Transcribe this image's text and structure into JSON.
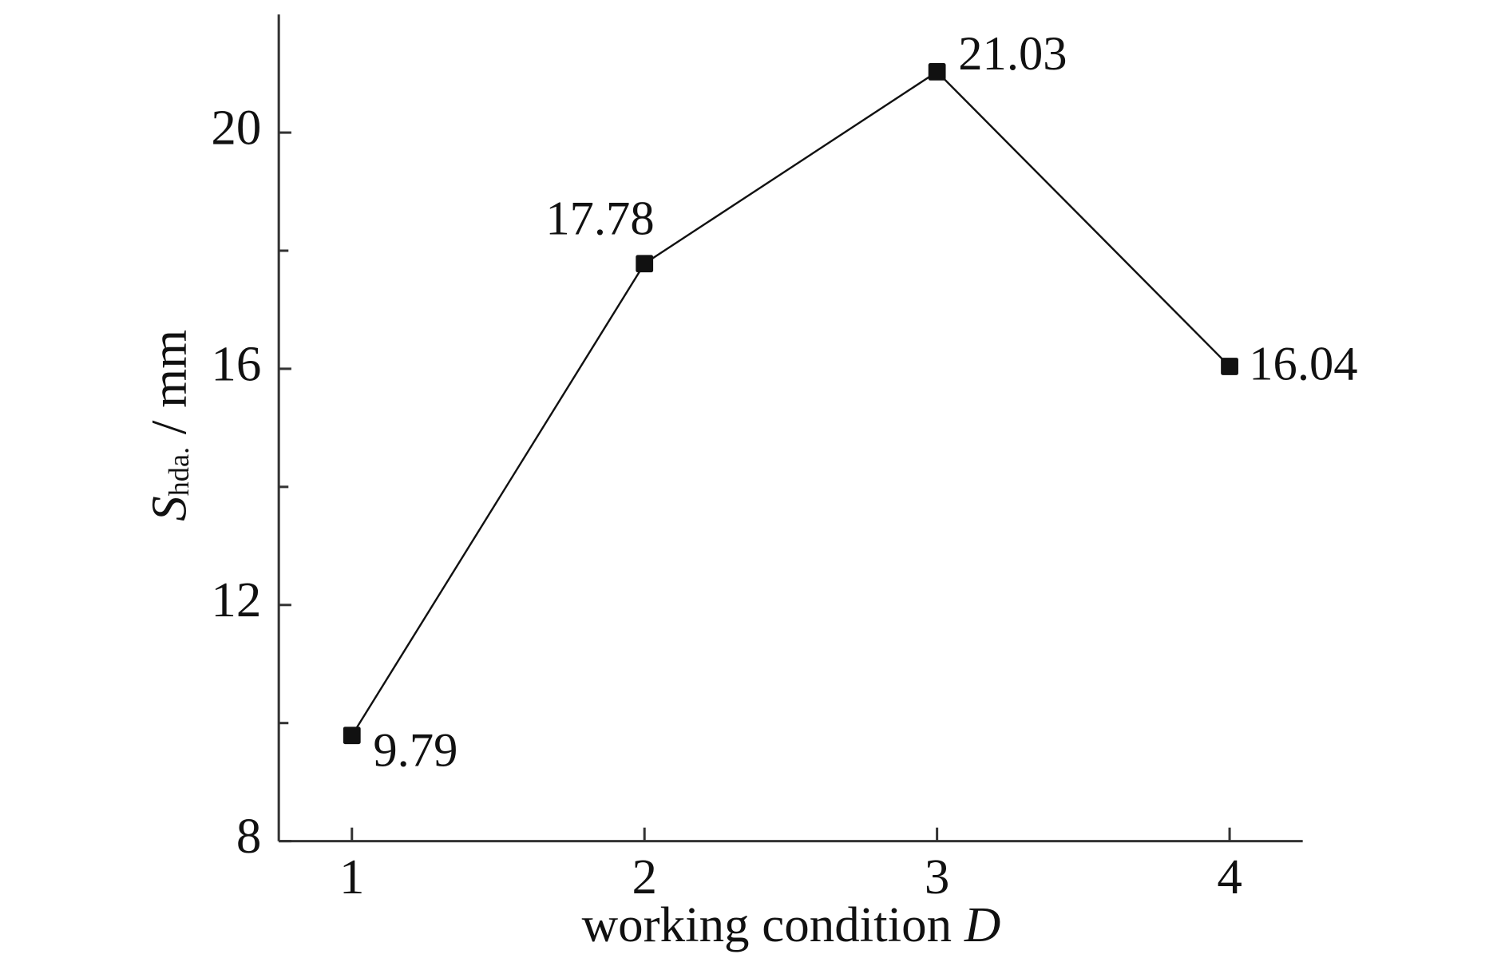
{
  "chart_data": {
    "type": "line",
    "xlabel": "working condition ",
    "xlabel_italic": "D",
    "ylabel": "S",
    "ylabel_sub": "hda.",
    "ylabel_unit": " / mm",
    "x": [
      1,
      2,
      3,
      4
    ],
    "series": [
      {
        "color": "#111111",
        "values": [
          9.79,
          17.78,
          21.03,
          16.04
        ]
      }
    ],
    "xlim": [
      0.75,
      4.25
    ],
    "xticks": [
      1,
      2,
      3,
      4
    ],
    "ylim": [
      8,
      22
    ],
    "yticks": [
      8,
      12,
      16,
      20
    ],
    "yminor_ticks": [
      10,
      14,
      18
    ],
    "grid": false,
    "marker": "square"
  }
}
